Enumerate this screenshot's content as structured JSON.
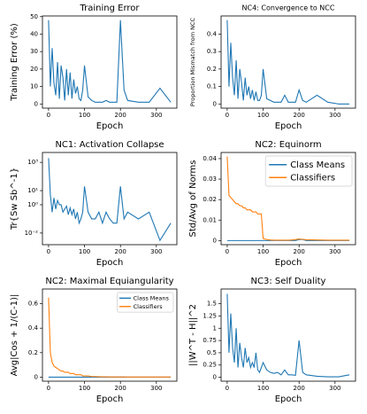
{
  "chart_data": [
    {
      "type": "line",
      "title": "Training Error",
      "xlabel": "Epoch",
      "ylabel": "Training Error (%)",
      "x": [
        0,
        5,
        10,
        15,
        20,
        25,
        30,
        35,
        40,
        45,
        50,
        55,
        60,
        65,
        70,
        75,
        80,
        85,
        90,
        95,
        100,
        110,
        120,
        130,
        140,
        150,
        160,
        170,
        180,
        190,
        200,
        210,
        220,
        250,
        280,
        310,
        340
      ],
      "values": [
        48,
        10,
        32,
        12,
        5,
        24,
        3,
        22,
        15,
        2,
        20,
        5,
        18,
        3,
        14,
        6,
        10,
        3,
        2,
        8,
        22,
        4,
        2,
        1,
        1,
        1,
        2,
        1,
        1,
        1,
        48,
        8,
        2,
        1,
        1,
        9,
        1
      ],
      "color": "#1f77b4",
      "xlim": [
        -17,
        357
      ],
      "xticks": [
        0,
        100,
        200,
        300
      ],
      "ylim": [
        -2.4,
        50.4
      ],
      "yticks": [
        0,
        10,
        20,
        30,
        40,
        50
      ]
    },
    {
      "type": "line",
      "title": "NC4: Convergence to NCC",
      "xlabel": "Epoch",
      "ylabel": "Proportion Mismatch from NCC",
      "x": [
        0,
        5,
        10,
        15,
        20,
        25,
        30,
        35,
        40,
        45,
        50,
        55,
        60,
        65,
        70,
        75,
        80,
        85,
        90,
        95,
        100,
        110,
        120,
        130,
        140,
        150,
        160,
        170,
        180,
        190,
        200,
        210,
        220,
        250,
        280,
        310,
        340
      ],
      "values": [
        0.48,
        0.1,
        0.35,
        0.15,
        0.05,
        0.25,
        0.03,
        0.2,
        0.12,
        0.02,
        0.15,
        0.05,
        0.1,
        0.03,
        0.08,
        0.02,
        0.07,
        0.02,
        0.02,
        0.05,
        0.2,
        0.03,
        0.02,
        0.01,
        0.01,
        0.01,
        0.05,
        0.01,
        0.01,
        0.01,
        0.08,
        0.02,
        0.01,
        0.05,
        0.01,
        0,
        0
      ],
      "color": "#1f77b4",
      "xlim": [
        -17,
        357
      ],
      "xticks": [
        0,
        100,
        200,
        300
      ],
      "ylim": [
        -0.024,
        0.504
      ],
      "yticks": [
        0,
        0.1,
        0.2,
        0.3,
        0.4
      ]
    },
    {
      "type": "line",
      "title": "NC1: Activation Collapse",
      "xlabel": "Epoch",
      "ylabel": "Tr{Sw Sb^-1}",
      "x": [
        0,
        5,
        10,
        15,
        20,
        25,
        30,
        35,
        40,
        45,
        50,
        55,
        60,
        65,
        70,
        75,
        80,
        85,
        90,
        95,
        100,
        110,
        120,
        130,
        140,
        150,
        160,
        170,
        180,
        190,
        200,
        210,
        220,
        250,
        280,
        310,
        340
      ],
      "values": [
        2000,
        5,
        0.3,
        3,
        0.5,
        2,
        1,
        1,
        0.3,
        0.5,
        0.8,
        0.2,
        0.6,
        0.2,
        0.5,
        0.1,
        0.3,
        0.05,
        0.1,
        0.3,
        20,
        0.3,
        0.1,
        0.1,
        0.3,
        0.05,
        0.3,
        0.1,
        0.05,
        0.05,
        20,
        0.1,
        0.3,
        0.1,
        0.3,
        0.003,
        0.05
      ],
      "color": "#1f77b4",
      "log_y": true,
      "xlim": [
        -17,
        357
      ],
      "xticks": [
        0,
        100,
        200,
        300
      ],
      "ylim": [
        0.0015,
        5000
      ],
      "yticks": [
        {
          "value": 0.01,
          "label": "10⁻²"
        },
        {
          "value": 1,
          "label": "10⁰"
        },
        {
          "value": 10,
          "label": "10¹"
        },
        {
          "value": 1000,
          "label": "10³"
        }
      ]
    },
    {
      "type": "line",
      "title": "NC2: Equinorm",
      "xlabel": "Epoch",
      "ylabel": "Std/Avg of Norms",
      "x": [
        0,
        5,
        10,
        15,
        20,
        25,
        30,
        35,
        40,
        45,
        50,
        55,
        60,
        65,
        70,
        75,
        80,
        85,
        90,
        95,
        100,
        110,
        120,
        130,
        140,
        150,
        160,
        170,
        180,
        190,
        200,
        210,
        220,
        250,
        280,
        310,
        340
      ],
      "series": [
        {
          "name": "Class Means",
          "color": "#1f77b4",
          "values": [
            0,
            0,
            0,
            0,
            0,
            0,
            0,
            0,
            0,
            0,
            0,
            0,
            0,
            0,
            0,
            0,
            0,
            0,
            0,
            0,
            0,
            0,
            0,
            0,
            0,
            0,
            0,
            0,
            0,
            0,
            0.0005,
            0.0005,
            0,
            0,
            0,
            0,
            0
          ]
        },
        {
          "name": "Classifiers",
          "color": "#ff7f0e",
          "values": [
            0.041,
            0.022,
            0.021,
            0.02,
            0.019,
            0.018,
            0.018,
            0.017,
            0.017,
            0.016,
            0.016,
            0.015,
            0.015,
            0.015,
            0.014,
            0.014,
            0.014,
            0.013,
            0.013,
            0.013,
            0.001,
            0.0005,
            0.0003,
            0.0002,
            0.0002,
            0.0002,
            0.0002,
            0.0002,
            0.0003,
            0.0005,
            0.0008,
            0.0006,
            0.0004,
            0.0003,
            0.0002,
            0.0002,
            0.0002
          ]
        }
      ],
      "legend": "upper right",
      "xlim": [
        -17,
        357
      ],
      "xticks": [
        0,
        100,
        200,
        300
      ],
      "ylim": [
        -0.002,
        0.043
      ],
      "yticks": [
        0,
        0.01,
        0.02,
        0.03,
        0.04
      ]
    },
    {
      "type": "line",
      "title": "NC2: Maximal Equiangularity",
      "xlabel": "Epoch",
      "ylabel": "Avg|Cos + 1/(C-1)|",
      "x": [
        0,
        5,
        10,
        15,
        20,
        25,
        30,
        35,
        40,
        45,
        50,
        55,
        60,
        65,
        70,
        75,
        80,
        85,
        90,
        95,
        100,
        110,
        120,
        130,
        140,
        150,
        160,
        170,
        180,
        190,
        200,
        210,
        220,
        250,
        280,
        310,
        340
      ],
      "series": [
        {
          "name": "Class Means",
          "color": "#1f77b4",
          "values": [
            0,
            0,
            0,
            0,
            0,
            0,
            0,
            0,
            0,
            0,
            0,
            0,
            0,
            0,
            0,
            0,
            0,
            0,
            0,
            0,
            0,
            0,
            0,
            0,
            0,
            0,
            0,
            0,
            0,
            0,
            0,
            0,
            0,
            0,
            0,
            0,
            0
          ]
        },
        {
          "name": "Classifiers",
          "color": "#ff7f0e",
          "values": [
            0.65,
            0.2,
            0.12,
            0.09,
            0.08,
            0.07,
            0.06,
            0.05,
            0.05,
            0.04,
            0.04,
            0.04,
            0.03,
            0.03,
            0.03,
            0.02,
            0.02,
            0.02,
            0.02,
            0.01,
            0.01,
            0.01,
            0.005,
            0.005,
            0.004,
            0.003,
            0.003,
            0.002,
            0.002,
            0.002,
            0.002,
            0.002,
            0.001,
            0.001,
            0.001,
            0.001,
            0.001
          ]
        }
      ],
      "legend": "upper right",
      "xlim": [
        -17,
        357
      ],
      "xticks": [
        0,
        100,
        200,
        300
      ],
      "ylim": [
        -0.033,
        0.72
      ],
      "yticks": [
        0,
        0.2,
        0.4,
        0.6
      ]
    },
    {
      "type": "line",
      "title": "NC3: Self Duality",
      "xlabel": "Epoch",
      "ylabel": "||W^T - H||^2",
      "x": [
        0,
        5,
        10,
        15,
        20,
        25,
        30,
        35,
        40,
        45,
        50,
        55,
        60,
        65,
        70,
        75,
        80,
        85,
        90,
        95,
        100,
        110,
        120,
        130,
        140,
        150,
        160,
        170,
        180,
        190,
        200,
        210,
        220,
        250,
        280,
        310,
        340
      ],
      "values": [
        1.7,
        0.5,
        1.3,
        0.6,
        0.3,
        1.0,
        0.2,
        0.7,
        0.4,
        0.2,
        0.6,
        0.3,
        0.4,
        0.2,
        0.3,
        0.2,
        0.5,
        0.15,
        0.1,
        0.2,
        0.3,
        0.15,
        0.1,
        0.08,
        0.1,
        0.05,
        0.15,
        0.05,
        0.05,
        0.04,
        0.75,
        0.1,
        0.05,
        0.02,
        0.01,
        0.01,
        0.05
      ],
      "color": "#1f77b4",
      "xlim": [
        -17,
        357
      ],
      "xticks": [
        0,
        100,
        200,
        300
      ],
      "ylim": [
        -0.08,
        1.8
      ],
      "yticks": [
        0,
        0.25,
        0.5,
        0.75,
        1,
        1.25,
        1.5
      ]
    }
  ]
}
